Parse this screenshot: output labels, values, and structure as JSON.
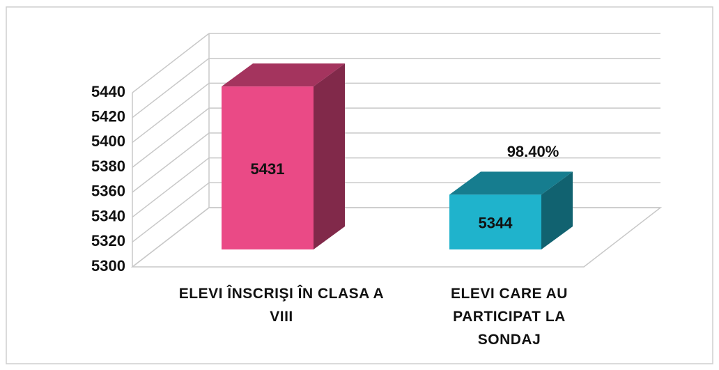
{
  "chart_data": {
    "type": "bar3d",
    "categories": [
      "ELEVI ÎNSCRIŞI ÎN CLASA A VIII",
      "ELEVI CARE AU PARTICIPAT LA SONDAJ"
    ],
    "values": [
      5431,
      5344
    ],
    "colors": [
      "#ea4a86",
      "#1fb3cc"
    ],
    "annotation": "98.40%",
    "ylim": [
      5300,
      5440
    ],
    "yticks": [
      5300,
      5320,
      5340,
      5360,
      5380,
      5400,
      5420,
      5440
    ],
    "grid": true
  }
}
